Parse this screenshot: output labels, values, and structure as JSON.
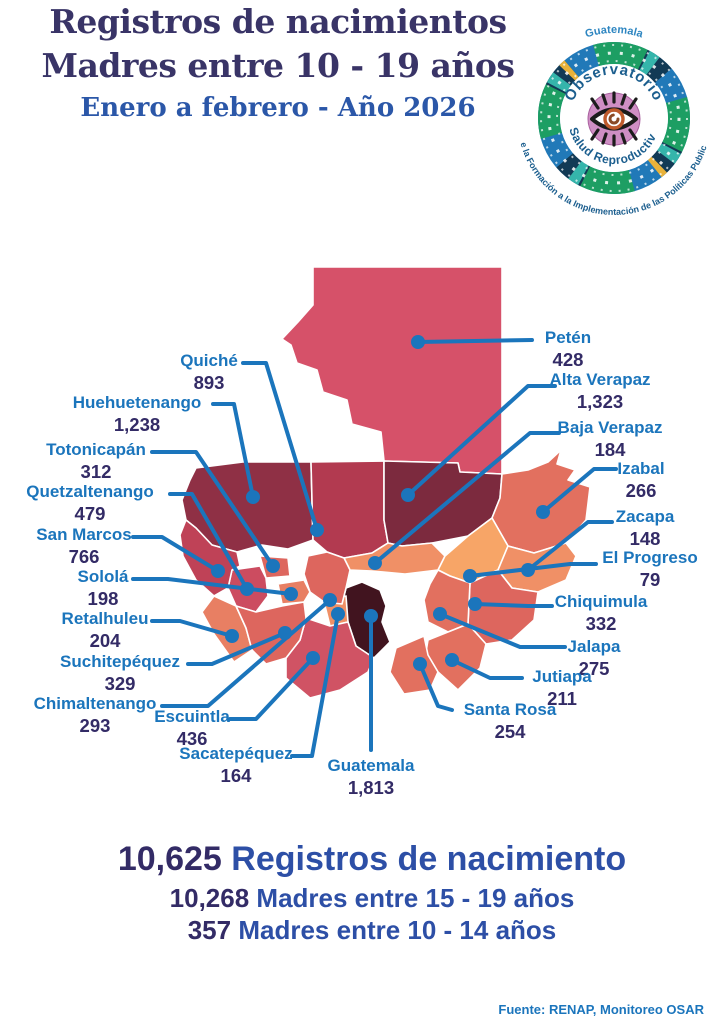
{
  "header": {
    "title_line1": "Registros de nacimientos",
    "title_line2": "Madres entre 10 - 19 años",
    "subtitle": "Enero a febrero - Año 2026"
  },
  "logo": {
    "country": "Guatemala",
    "arc_top": "Observatorio",
    "arc_bottom": "Salud Reproductiva",
    "outer_arc": "De la Formación a la Implementación de las Políticas Publicas",
    "icon": "eye-icon"
  },
  "map": {
    "departments": [
      {
        "id": "peten",
        "name": "Petén",
        "value": "428",
        "fill": "#d65169"
      },
      {
        "id": "huehuetenango",
        "name": "Huehuetenango",
        "value": "1,238",
        "fill": "#8f3045"
      },
      {
        "id": "quiche",
        "name": "Quiché",
        "value": "893",
        "fill": "#b23a50"
      },
      {
        "id": "altaverapaz",
        "name": "Alta Verapaz",
        "value": "1,323",
        "fill": "#7c2a3e"
      },
      {
        "id": "izabal",
        "name": "Izabal",
        "value": "266",
        "fill": "#e2705f"
      },
      {
        "id": "bajaverapaz",
        "name": "Baja Verapaz",
        "value": "184",
        "fill": "#f09066"
      },
      {
        "id": "elprogreso",
        "name": "El Progreso",
        "value": "79",
        "fill": "#f7a567"
      },
      {
        "id": "zacapa",
        "name": "Zacapa",
        "value": "148",
        "fill": "#f09066"
      },
      {
        "id": "chiquimula",
        "name": "Chiquimula",
        "value": "332",
        "fill": "#dd665e"
      },
      {
        "id": "jalapa",
        "name": "Jalapa",
        "value": "275",
        "fill": "#e2705f"
      },
      {
        "id": "jutiapa",
        "name": "Jutiapa",
        "value": "211",
        "fill": "#e2705f"
      },
      {
        "id": "santarosa",
        "name": "Santa Rosa",
        "value": "254",
        "fill": "#e2705f"
      },
      {
        "id": "guatemala",
        "name": "Guatemala",
        "value": "1,813",
        "fill": "#41141f"
      },
      {
        "id": "sacatepequez",
        "name": "Sacatepéquez",
        "value": "164",
        "fill": "#f09066"
      },
      {
        "id": "escuintla",
        "name": "Escuintla",
        "value": "436",
        "fill": "#d05364"
      },
      {
        "id": "chimaltenango",
        "name": "Chimaltenango",
        "value": "293",
        "fill": "#dd665e"
      },
      {
        "id": "solola",
        "name": "Sololá",
        "value": "198",
        "fill": "#e87f63"
      },
      {
        "id": "totonicapan",
        "name": "Totonicapán",
        "value": "312",
        "fill": "#dd665e"
      },
      {
        "id": "quetzaltenango",
        "name": "Quetzaltenango",
        "value": "479",
        "fill": "#cc4c60"
      },
      {
        "id": "sanmarcos",
        "name": "San Marcos",
        "value": "766",
        "fill": "#bf4257"
      },
      {
        "id": "retalhuleu",
        "name": "Retalhuleu",
        "value": "204",
        "fill": "#e87f63"
      },
      {
        "id": "suchitepequez",
        "name": "Suchitepéquez",
        "value": "329",
        "fill": "#dd665e"
      }
    ]
  },
  "chart_data": {
    "type": "heatmap",
    "subtype": "choropleth-map",
    "region": "Guatemala (22 departamentos)",
    "title": "Registros de nacimientos - Madres entre 10 - 19 años",
    "subtitle": "Enero a febrero - Año 2026",
    "categories": [
      "Petén",
      "Alta Verapaz",
      "Baja Verapaz",
      "Izabal",
      "Zacapa",
      "El Progreso",
      "Chiquimula",
      "Jalapa",
      "Jutiapa",
      "Santa Rosa",
      "Guatemala",
      "Sacatepéquez",
      "Escuintla",
      "Chimaltenango",
      "Suchitepéquez",
      "Retalhuleu",
      "Sololá",
      "San Marcos",
      "Quetzaltenango",
      "Totonicapán",
      "Huehuetenango",
      "Quiché"
    ],
    "values": [
      428,
      1323,
      184,
      266,
      148,
      79,
      332,
      275,
      211,
      254,
      1813,
      164,
      436,
      293,
      329,
      204,
      198,
      766,
      479,
      312,
      1238,
      893
    ],
    "total": 10625,
    "total_15_19": 10268,
    "total_10_14": 357,
    "legend_position": "none",
    "source": "Fuente: RENAP, Monitoreo OSAR"
  },
  "summary": {
    "total_value": "10,625",
    "total_label": "Registros de nacimiento",
    "line2_value": "10,268",
    "line2_label": "Madres entre 15 - 19 años",
    "line3_value": "357",
    "line3_label": "Madres entre 10 - 14 años"
  },
  "footer": {
    "source": "Fuente: RENAP, Monitoreo OSAR"
  },
  "theme": {
    "label_blue": "#1b75bc",
    "number_navy": "#332b66",
    "title_navy": "#393467",
    "subtitle_blue": "#2b57a8",
    "summary_blue": "#2d4fa6"
  }
}
